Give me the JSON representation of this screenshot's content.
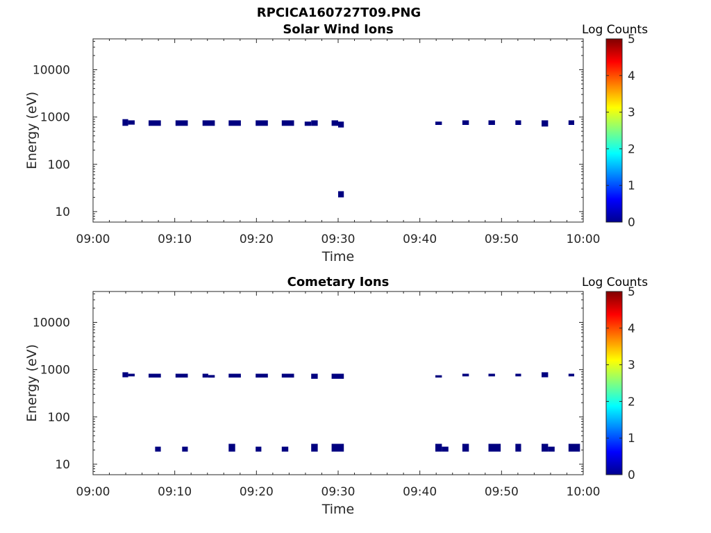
{
  "figure_title": "RPCICA160727T09.PNG",
  "colormap": [
    "#00008f",
    "#0000ff",
    "#0080ff",
    "#00ffff",
    "#80ff80",
    "#ffff00",
    "#ff8000",
    "#ff0000",
    "#800000"
  ],
  "mark_color": "#000080",
  "chart_data": [
    {
      "type": "heatmap",
      "title": "Solar Wind Ions",
      "xlabel": "Time",
      "ylabel": "Energy (eV)",
      "x_range_min": [
        0,
        60
      ],
      "x_tick_values_min": [
        0,
        10,
        20,
        30,
        40,
        50,
        60
      ],
      "x_tick_labels": [
        "09:00",
        "09:10",
        "09:20",
        "09:30",
        "09:40",
        "09:50",
        "10:00"
      ],
      "y_scale": "log",
      "y_range": [
        6,
        45000
      ],
      "y_tick_values": [
        10,
        100,
        1000,
        10000
      ],
      "y_tick_labels": [
        "10",
        "100",
        "1000",
        "10000"
      ],
      "colorbar": {
        "label": "Log Counts",
        "range": [
          0,
          5
        ],
        "tick_labels": [
          "0",
          "1",
          "2",
          "3",
          "4",
          "5"
        ]
      },
      "cells": [
        {
          "t0": 3.6,
          "t1": 4.3,
          "e0": 650,
          "e1": 900,
          "log_counts": 0
        },
        {
          "t0": 4.3,
          "t1": 5.1,
          "e0": 690,
          "e1": 850,
          "log_counts": 0
        },
        {
          "t0": 6.8,
          "t1": 8.3,
          "e0": 650,
          "e1": 850,
          "log_counts": 0
        },
        {
          "t0": 10.1,
          "t1": 11.6,
          "e0": 650,
          "e1": 850,
          "log_counts": 0
        },
        {
          "t0": 13.4,
          "t1": 14.9,
          "e0": 650,
          "e1": 850,
          "log_counts": 0
        },
        {
          "t0": 16.6,
          "t1": 18.1,
          "e0": 650,
          "e1": 850,
          "log_counts": 0
        },
        {
          "t0": 19.9,
          "t1": 21.4,
          "e0": 650,
          "e1": 850,
          "log_counts": 0
        },
        {
          "t0": 23.1,
          "t1": 24.6,
          "e0": 650,
          "e1": 850,
          "log_counts": 0
        },
        {
          "t0": 25.9,
          "t1": 26.7,
          "e0": 650,
          "e1": 800,
          "log_counts": 0
        },
        {
          "t0": 26.7,
          "t1": 27.5,
          "e0": 650,
          "e1": 850,
          "log_counts": 0
        },
        {
          "t0": 29.2,
          "t1": 30.0,
          "e0": 650,
          "e1": 850,
          "log_counts": 0
        },
        {
          "t0": 30.0,
          "t1": 30.7,
          "e0": 600,
          "e1": 800,
          "log_counts": 0
        },
        {
          "t0": 30.0,
          "t1": 30.7,
          "e0": 20,
          "e1": 27,
          "log_counts": 0
        },
        {
          "t0": 41.9,
          "t1": 42.7,
          "e0": 680,
          "e1": 800,
          "log_counts": 0
        },
        {
          "t0": 45.2,
          "t1": 46.0,
          "e0": 680,
          "e1": 850,
          "log_counts": 0
        },
        {
          "t0": 48.4,
          "t1": 49.2,
          "e0": 680,
          "e1": 850,
          "log_counts": 0
        },
        {
          "t0": 51.7,
          "t1": 52.4,
          "e0": 680,
          "e1": 850,
          "log_counts": 0
        },
        {
          "t0": 54.9,
          "t1": 55.7,
          "e0": 630,
          "e1": 850,
          "log_counts": 0
        },
        {
          "t0": 58.2,
          "t1": 58.9,
          "e0": 680,
          "e1": 850,
          "log_counts": 0
        }
      ]
    },
    {
      "type": "heatmap",
      "title": "Cometary Ions",
      "xlabel": "Time",
      "ylabel": "Energy (eV)",
      "x_range_min": [
        0,
        60
      ],
      "x_tick_values_min": [
        0,
        10,
        20,
        30,
        40,
        50,
        60
      ],
      "x_tick_labels": [
        "09:00",
        "09:10",
        "09:20",
        "09:30",
        "09:40",
        "09:50",
        "10:00"
      ],
      "y_scale": "log",
      "y_range": [
        6,
        45000
      ],
      "y_tick_values": [
        10,
        100,
        1000,
        10000
      ],
      "y_tick_labels": [
        "10",
        "100",
        "1000",
        "10000"
      ],
      "colorbar": {
        "label": "Log Counts",
        "range": [
          0,
          5
        ],
        "tick_labels": [
          "0",
          "1",
          "2",
          "3",
          "4",
          "5"
        ]
      },
      "cells": [
        {
          "t0": 3.6,
          "t1": 4.3,
          "e0": 690,
          "e1": 880,
          "log_counts": 0
        },
        {
          "t0": 4.3,
          "t1": 5.1,
          "e0": 720,
          "e1": 820,
          "log_counts": 0
        },
        {
          "t0": 6.8,
          "t1": 8.3,
          "e0": 680,
          "e1": 820,
          "log_counts": 0
        },
        {
          "t0": 10.1,
          "t1": 11.6,
          "e0": 680,
          "e1": 820,
          "log_counts": 0
        },
        {
          "t0": 13.4,
          "t1": 14.1,
          "e0": 680,
          "e1": 820,
          "log_counts": 0
        },
        {
          "t0": 14.1,
          "t1": 14.9,
          "e0": 680,
          "e1": 770,
          "log_counts": 0
        },
        {
          "t0": 16.6,
          "t1": 18.1,
          "e0": 680,
          "e1": 820,
          "log_counts": 0
        },
        {
          "t0": 19.9,
          "t1": 21.4,
          "e0": 680,
          "e1": 820,
          "log_counts": 0
        },
        {
          "t0": 23.1,
          "t1": 24.6,
          "e0": 680,
          "e1": 820,
          "log_counts": 0
        },
        {
          "t0": 26.7,
          "t1": 27.5,
          "e0": 640,
          "e1": 820,
          "log_counts": 0
        },
        {
          "t0": 29.2,
          "t1": 30.7,
          "e0": 640,
          "e1": 820,
          "log_counts": 0
        },
        {
          "t0": 41.9,
          "t1": 42.7,
          "e0": 680,
          "e1": 760,
          "log_counts": 0
        },
        {
          "t0": 45.2,
          "t1": 46.0,
          "e0": 720,
          "e1": 820,
          "log_counts": 0
        },
        {
          "t0": 48.4,
          "t1": 49.2,
          "e0": 720,
          "e1": 820,
          "log_counts": 0
        },
        {
          "t0": 51.7,
          "t1": 52.4,
          "e0": 720,
          "e1": 820,
          "log_counts": 0
        },
        {
          "t0": 54.9,
          "t1": 55.7,
          "e0": 690,
          "e1": 880,
          "log_counts": 0
        },
        {
          "t0": 58.2,
          "t1": 58.9,
          "e0": 720,
          "e1": 820,
          "log_counts": 0
        },
        {
          "t0": 7.6,
          "t1": 8.3,
          "e0": 18.5,
          "e1": 23.5,
          "log_counts": 0
        },
        {
          "t0": 10.9,
          "t1": 11.6,
          "e0": 18.5,
          "e1": 23.5,
          "log_counts": 0
        },
        {
          "t0": 16.6,
          "t1": 17.4,
          "e0": 18.5,
          "e1": 27,
          "log_counts": 0
        },
        {
          "t0": 19.9,
          "t1": 20.6,
          "e0": 18.5,
          "e1": 23.5,
          "log_counts": 0
        },
        {
          "t0": 23.1,
          "t1": 23.9,
          "e0": 18.5,
          "e1": 23.5,
          "log_counts": 0
        },
        {
          "t0": 26.7,
          "t1": 27.5,
          "e0": 18.5,
          "e1": 27,
          "log_counts": 0
        },
        {
          "t0": 29.2,
          "t1": 30.7,
          "e0": 18.5,
          "e1": 27,
          "log_counts": 0
        },
        {
          "t0": 41.9,
          "t1": 42.7,
          "e0": 18.5,
          "e1": 27,
          "log_counts": 0
        },
        {
          "t0": 42.7,
          "t1": 43.5,
          "e0": 18.5,
          "e1": 23.5,
          "log_counts": 0
        },
        {
          "t0": 45.2,
          "t1": 46.0,
          "e0": 18.5,
          "e1": 27,
          "log_counts": 0
        },
        {
          "t0": 48.4,
          "t1": 49.9,
          "e0": 18.5,
          "e1": 27,
          "log_counts": 0
        },
        {
          "t0": 51.7,
          "t1": 52.4,
          "e0": 18.5,
          "e1": 27,
          "log_counts": 0
        },
        {
          "t0": 54.9,
          "t1": 55.7,
          "e0": 18.5,
          "e1": 27,
          "log_counts": 0
        },
        {
          "t0": 55.7,
          "t1": 56.5,
          "e0": 18.5,
          "e1": 23.5,
          "log_counts": 0
        },
        {
          "t0": 58.2,
          "t1": 59.6,
          "e0": 18.5,
          "e1": 27,
          "log_counts": 0
        }
      ]
    }
  ]
}
